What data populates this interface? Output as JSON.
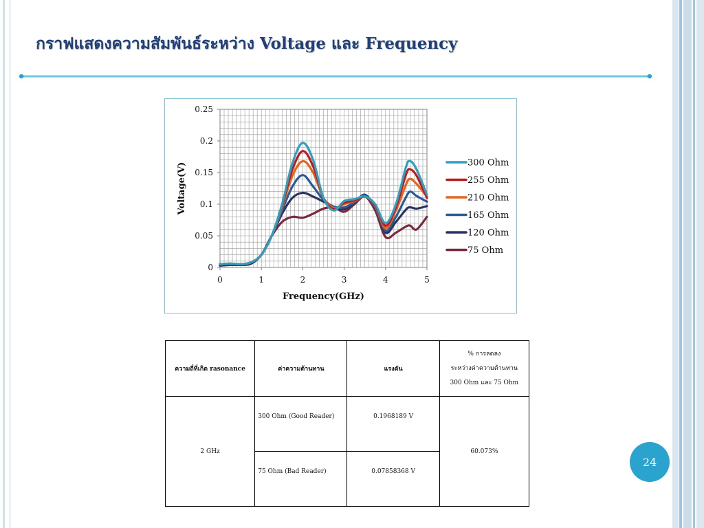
{
  "slide": {
    "title": "กราฟแสดงความสัมพันธ์ระหว่าง Voltage และ Frequency",
    "page_number": "24",
    "accent_color": "#29a3d0",
    "title_color": "#1e3f78"
  },
  "chart_data": {
    "type": "line",
    "title": "",
    "xlabel": "Frequency(GHz)",
    "ylabel": "Voltage(V)",
    "xlim": [
      0,
      5
    ],
    "ylim": [
      0,
      0.25
    ],
    "x_ticks": [
      "0",
      "1",
      "2",
      "3",
      "4",
      "5"
    ],
    "y_ticks": [
      "0",
      "0.05",
      "0.1",
      "0.15",
      "0.2",
      "0.25"
    ],
    "grid": true,
    "legend_position": "right",
    "x": [
      0,
      0.25,
      0.5,
      0.75,
      1.0,
      1.25,
      1.5,
      1.75,
      2.0,
      2.25,
      2.5,
      2.75,
      3.0,
      3.25,
      3.5,
      3.75,
      4.0,
      4.25,
      4.5,
      4.6,
      4.75,
      5.0
    ],
    "series": [
      {
        "name": "300 Ohm",
        "color": "#2f9fc0",
        "values": [
          0.005,
          0.006,
          0.005,
          0.008,
          0.02,
          0.05,
          0.1,
          0.165,
          0.197,
          0.17,
          0.11,
          0.09,
          0.105,
          0.108,
          0.112,
          0.1,
          0.07,
          0.1,
          0.16,
          0.168,
          0.155,
          0.115
        ]
      },
      {
        "name": "255 Ohm",
        "color": "#c0191d",
        "values": [
          0.005,
          0.006,
          0.005,
          0.008,
          0.02,
          0.05,
          0.098,
          0.155,
          0.184,
          0.16,
          0.11,
          0.092,
          0.102,
          0.106,
          0.112,
          0.098,
          0.066,
          0.095,
          0.148,
          0.155,
          0.145,
          0.11
        ]
      },
      {
        "name": "210 Ohm",
        "color": "#e8631a",
        "values": [
          0.005,
          0.006,
          0.005,
          0.008,
          0.02,
          0.05,
          0.095,
          0.145,
          0.168,
          0.15,
          0.11,
          0.094,
          0.1,
          0.105,
          0.112,
          0.097,
          0.062,
          0.09,
          0.132,
          0.14,
          0.132,
          0.112
        ]
      },
      {
        "name": "165 Ohm",
        "color": "#2a5a96",
        "values": [
          0.005,
          0.006,
          0.005,
          0.008,
          0.02,
          0.05,
          0.09,
          0.128,
          0.146,
          0.128,
          0.107,
          0.096,
          0.095,
          0.103,
          0.114,
          0.095,
          0.058,
          0.08,
          0.112,
          0.12,
          0.113,
          0.104
        ]
      },
      {
        "name": "120 Ohm",
        "color": "#2a3260",
        "values": [
          0.003,
          0.004,
          0.004,
          0.006,
          0.02,
          0.05,
          0.085,
          0.11,
          0.118,
          0.112,
          0.104,
          0.096,
          0.092,
          0.102,
          0.115,
          0.094,
          0.055,
          0.072,
          0.092,
          0.095,
          0.093,
          0.097
        ]
      },
      {
        "name": "75 Ohm",
        "color": "#7a2a3e",
        "values": [
          0.003,
          0.004,
          0.004,
          0.006,
          0.02,
          0.05,
          0.072,
          0.08,
          0.0786,
          0.085,
          0.093,
          0.095,
          0.088,
          0.1,
          0.112,
          0.09,
          0.048,
          0.055,
          0.065,
          0.066,
          0.06,
          0.08
        ]
      }
    ]
  },
  "table": {
    "headers": [
      "ความถี่ที่เกิด rasonance",
      "ค่าความต้านทาน",
      "แรงดัน"
    ],
    "header_percent_lines": [
      "% การลดลง",
      "ระหว่างค่าความต้านทาน",
      "300 Ohm และ 75 Ohm"
    ],
    "frequency": "2 GHz",
    "rows": [
      {
        "resistance": "300 Ohm (Good Reader)",
        "voltage": "0.1968189 V"
      },
      {
        "resistance": "75 Ohm  (Bad Reader)",
        "voltage": "0.07858368 V"
      }
    ],
    "percent": "60.073%"
  }
}
